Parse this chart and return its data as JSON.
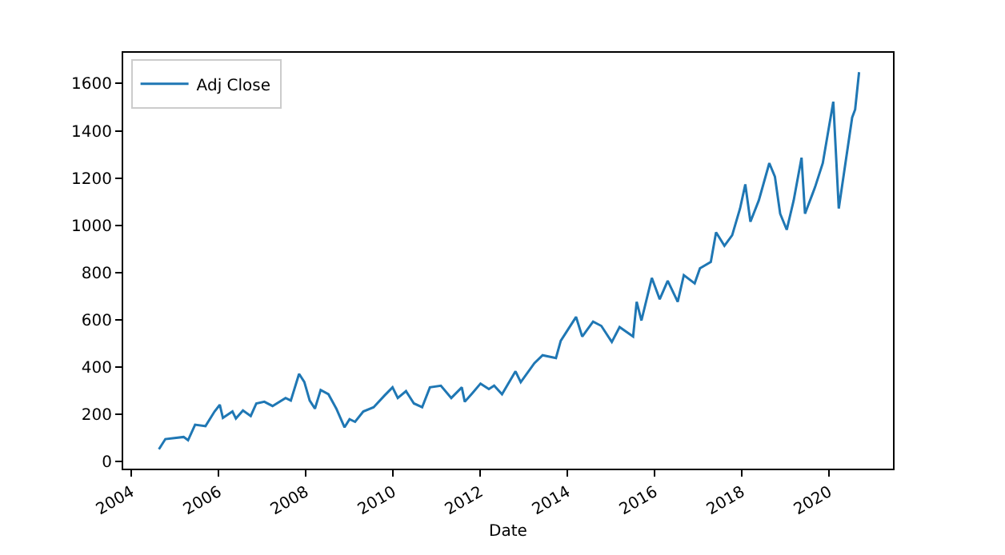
{
  "chart_data": {
    "type": "line",
    "xlabel": "Date",
    "legend": "top left",
    "grid": false,
    "marker": "none",
    "line_style": "solid",
    "xlim": [
      "2003-10-25",
      "2021-06-20"
    ],
    "xticks": [
      "2004",
      "2006",
      "2008",
      "2010",
      "2012",
      "2014",
      "2016",
      "2018",
      "2020"
    ],
    "ylim": [
      -30,
      1730
    ],
    "yticks": [
      0,
      200,
      400,
      600,
      800,
      1000,
      1200,
      1400,
      1600
    ],
    "x": [
      "2004-08-19",
      "2004-10-12",
      "2005-03-14",
      "2005-04-20",
      "2005-06-18",
      "2005-09-13",
      "2005-11-28",
      "2006-01-11",
      "2006-02-06",
      "2006-04-27",
      "2006-05-26",
      "2006-07-24",
      "2006-09-27",
      "2006-11-13",
      "2007-01-19",
      "2007-03-29",
      "2007-07-16",
      "2007-08-29",
      "2007-11-06",
      "2007-12-20",
      "2008-02-03",
      "2008-03-18",
      "2008-05-05",
      "2008-07-09",
      "2008-09-13",
      "2008-11-21",
      "2009-01-02",
      "2009-02-17",
      "2009-04-27",
      "2009-07-23",
      "2009-10-23",
      "2009-12-28",
      "2010-02-10",
      "2010-04-20",
      "2010-06-25",
      "2010-09-02",
      "2010-11-06",
      "2011-02-06",
      "2011-05-04",
      "2011-07-31",
      "2011-08-25",
      "2011-10-30",
      "2012-01-04",
      "2012-03-14",
      "2012-04-27",
      "2012-07-02",
      "2012-10-23",
      "2012-12-06",
      "2013-03-30",
      "2013-06-07",
      "2013-09-27",
      "2013-11-06",
      "2014-03-14",
      "2014-05-05",
      "2014-08-04",
      "2014-10-12",
      "2015-01-08",
      "2015-03-14",
      "2015-07-05",
      "2015-08-04",
      "2015-09-13",
      "2015-12-09",
      "2016-02-13",
      "2016-04-20",
      "2016-07-13",
      "2016-09-02",
      "2016-12-02",
      "2017-01-15",
      "2017-04-16",
      "2017-05-30",
      "2017-08-08",
      "2017-10-12",
      "2017-12-17",
      "2018-01-30",
      "2018-03-14",
      "2018-05-23",
      "2018-08-19",
      "2018-10-05",
      "2018-11-18",
      "2019-01-12",
      "2019-03-11",
      "2019-05-16",
      "2019-06-14",
      "2019-09-06",
      "2019-11-10",
      "2020-02-06",
      "2020-03-23",
      "2020-05-08",
      "2020-07-13",
      "2020-08-07",
      "2020-09-09"
    ],
    "series": [
      {
        "name": "Adj Close",
        "color": "#1f77b4",
        "values": [
          52,
          95,
          104,
          90,
          156,
          150,
          212,
          240,
          185,
          212,
          182,
          216,
          193,
          246,
          253,
          235,
          269,
          258,
          371,
          337,
          258,
          224,
          303,
          285,
          224,
          145,
          179,
          168,
          212,
          230,
          280,
          314,
          269,
          298,
          246,
          230,
          314,
          321,
          269,
          314,
          253,
          291,
          330,
          307,
          321,
          285,
          382,
          336,
          416,
          450,
          438,
          511,
          612,
          529,
          592,
          574,
          506,
          569,
          529,
          676,
          597,
          777,
          687,
          765,
          676,
          789,
          754,
          818,
          845,
          970,
          913,
          958,
          1071,
          1173,
          1015,
          1105,
          1263,
          1206,
          1049,
          981,
          1105,
          1286,
          1049,
          1161,
          1263,
          1523,
          1071,
          1229,
          1456,
          1490,
          1648
        ]
      }
    ]
  }
}
